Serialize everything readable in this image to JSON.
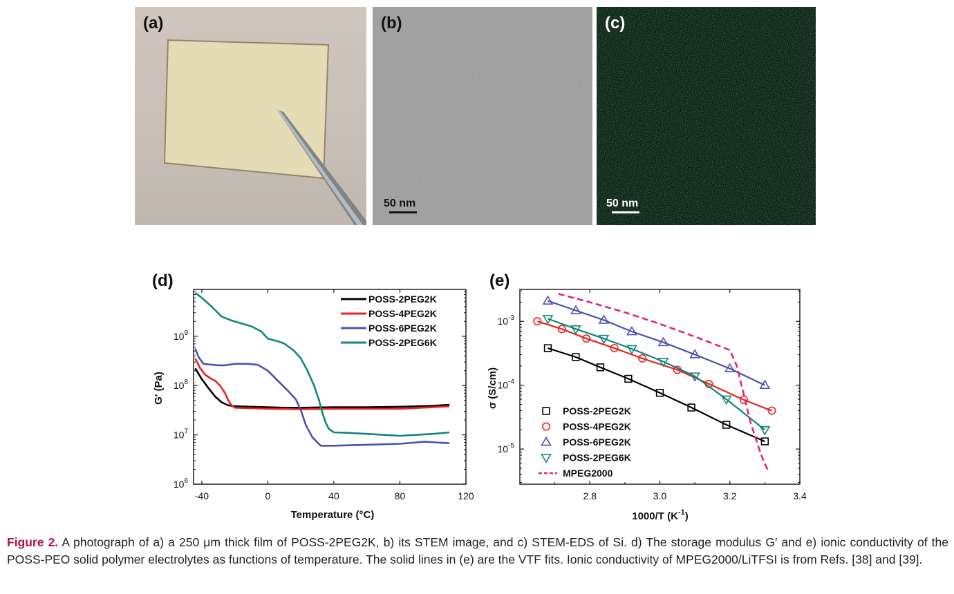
{
  "panels": {
    "a": {
      "label": "(a)"
    },
    "b": {
      "label": "(b)",
      "scalebar": "50 nm"
    },
    "c": {
      "label": "(c)",
      "scalebar": "50 nm"
    }
  },
  "chart_d": {
    "label": "(d)",
    "type": "line",
    "xlabel": "Temperature (°C)",
    "ylabel": "G' (Pa)",
    "xlim": [
      -45,
      120
    ],
    "ylim_log10": [
      6,
      9.95
    ],
    "yscale": "log",
    "xticks": [
      "-40",
      "0",
      "40",
      "80",
      "120"
    ],
    "xtick_values": [
      -40,
      0,
      40,
      80,
      120
    ],
    "yticks": [
      {
        "base": "10",
        "exp": "6",
        "v": 6
      },
      {
        "base": "10",
        "exp": "7",
        "v": 7
      },
      {
        "base": "10",
        "exp": "8",
        "v": 8
      },
      {
        "base": "10",
        "exp": "9",
        "v": 9
      }
    ],
    "legend_placement": "top-right",
    "series": [
      {
        "name": "POSS-2PEG2K",
        "color": "#000000",
        "x": [
          -44,
          -40,
          -36,
          -32,
          -28,
          -24,
          -20,
          -10,
          0,
          10,
          20,
          40,
          60,
          80,
          100,
          110
        ],
        "log10y": [
          8.35,
          8.13,
          7.95,
          7.78,
          7.66,
          7.6,
          7.58,
          7.57,
          7.56,
          7.55,
          7.55,
          7.56,
          7.56,
          7.57,
          7.59,
          7.61
        ]
      },
      {
        "name": "POSS-4PEG2K",
        "color": "#e8231f",
        "x": [
          -44,
          -41,
          -38,
          -35,
          -32,
          -29,
          -26,
          -24,
          -22,
          -20,
          0,
          20,
          40,
          60,
          80,
          100,
          110
        ],
        "log10y": [
          8.55,
          8.35,
          8.22,
          8.15,
          8.1,
          8.0,
          7.85,
          7.7,
          7.6,
          7.55,
          7.53,
          7.52,
          7.53,
          7.53,
          7.53,
          7.56,
          7.58
        ]
      },
      {
        "name": "POSS-6PEG2K",
        "color": "#4a50b0",
        "x": [
          -44,
          -42,
          -39,
          -36,
          -30,
          -26,
          -20,
          -12,
          -6,
          0,
          6,
          12,
          17,
          20,
          23,
          27,
          32,
          40,
          60,
          80,
          95,
          110
        ],
        "log10y": [
          8.75,
          8.58,
          8.44,
          8.43,
          8.41,
          8.41,
          8.44,
          8.44,
          8.42,
          8.3,
          8.1,
          7.9,
          7.72,
          7.5,
          7.2,
          6.95,
          6.78,
          6.78,
          6.8,
          6.82,
          6.86,
          6.83
        ]
      },
      {
        "name": "POSS-2PEG6K",
        "color": "#11857e",
        "x": [
          -44,
          -40,
          -34,
          -28,
          -22,
          -16,
          -10,
          -4,
          0,
          6,
          10,
          16,
          20,
          24,
          28,
          31,
          33,
          35,
          37,
          40,
          50,
          60,
          70,
          80,
          90,
          100,
          110
        ],
        "log10y": [
          9.88,
          9.78,
          9.6,
          9.4,
          9.32,
          9.26,
          9.2,
          9.1,
          8.95,
          8.9,
          8.85,
          8.7,
          8.55,
          8.3,
          8.0,
          7.7,
          7.45,
          7.25,
          7.12,
          7.05,
          7.04,
          7.02,
          7.0,
          6.98,
          7.0,
          7.02,
          7.05
        ]
      }
    ]
  },
  "chart_e": {
    "label": "(e)",
    "type": "scatter",
    "xlabel": "1000/T (K",
    "xlabel_exp": "-1",
    "xlabel_end": ")",
    "ylabel": "σ (S/cm)",
    "xlim": [
      2.6,
      3.4
    ],
    "ylim_log10": [
      -5.55,
      -2.5
    ],
    "yscale": "log",
    "xticks": [
      "2.8",
      "3.0",
      "3.2",
      "3.4"
    ],
    "xtick_values": [
      2.8,
      3.0,
      3.2,
      3.4
    ],
    "yticks": [
      {
        "base": "10",
        "exp": "-5",
        "v": -5
      },
      {
        "base": "10",
        "exp": "-4",
        "v": -4
      },
      {
        "base": "10",
        "exp": "-3",
        "v": -3
      }
    ],
    "legend_placement": "bottom-left",
    "series": [
      {
        "name": "POSS-2PEG2K",
        "color": "#000000",
        "marker": "square",
        "x": [
          2.68,
          2.76,
          2.83,
          2.91,
          3.0,
          3.09,
          3.19,
          3.3
        ],
        "log10y": [
          -3.42,
          -3.56,
          -3.72,
          -3.9,
          -4.12,
          -4.35,
          -4.62,
          -4.88
        ]
      },
      {
        "name": "POSS-4PEG2K",
        "color": "#e8231f",
        "marker": "circle",
        "x": [
          2.65,
          2.72,
          2.79,
          2.87,
          2.95,
          3.05,
          3.14,
          3.24,
          3.32
        ],
        "log10y": [
          -3.0,
          -3.12,
          -3.27,
          -3.42,
          -3.58,
          -3.76,
          -3.98,
          -4.23,
          -4.4
        ]
      },
      {
        "name": "POSS-6PEG2K",
        "color": "#4a50b0",
        "marker": "triangle-up",
        "x": [
          2.68,
          2.76,
          2.84,
          2.92,
          3.01,
          3.1,
          3.2,
          3.3
        ],
        "log10y": [
          -2.68,
          -2.83,
          -2.98,
          -3.16,
          -3.33,
          -3.52,
          -3.74,
          -4.0
        ]
      },
      {
        "name": "POSS-2PEG6K",
        "color": "#11857e",
        "marker": "triangle-down",
        "x": [
          2.68,
          2.76,
          2.84,
          2.92,
          3.01,
          3.1,
          3.19,
          3.3
        ],
        "log10y": [
          -2.96,
          -3.12,
          -3.27,
          -3.43,
          -3.63,
          -3.86,
          -4.22,
          -4.7
        ]
      },
      {
        "name": "MPEG2000",
        "color": "#e0247a",
        "marker": "dashed-line",
        "x": [
          2.71,
          2.8,
          2.9,
          3.0,
          3.1,
          3.2,
          3.22,
          3.26,
          3.29,
          3.31
        ],
        "log10y": [
          -2.57,
          -2.7,
          -2.86,
          -3.04,
          -3.24,
          -3.45,
          -3.7,
          -4.6,
          -5.1,
          -5.35
        ]
      }
    ]
  },
  "caption": {
    "bold": "Figure 2.",
    "text": " A photograph of a) a 250 μm thick film of POSS-2PEG2K, b) its STEM image, and c) STEM-EDS of Si. d) The storage modulus G′ and e) ionic conductivity of the POSS-PEO solid polymer electrolytes as functions of temperature. The solid lines in (e) are the VTF fits. Ionic conductivity of MPEG2000/LiTFSI is from Refs. [38] and [39]."
  }
}
